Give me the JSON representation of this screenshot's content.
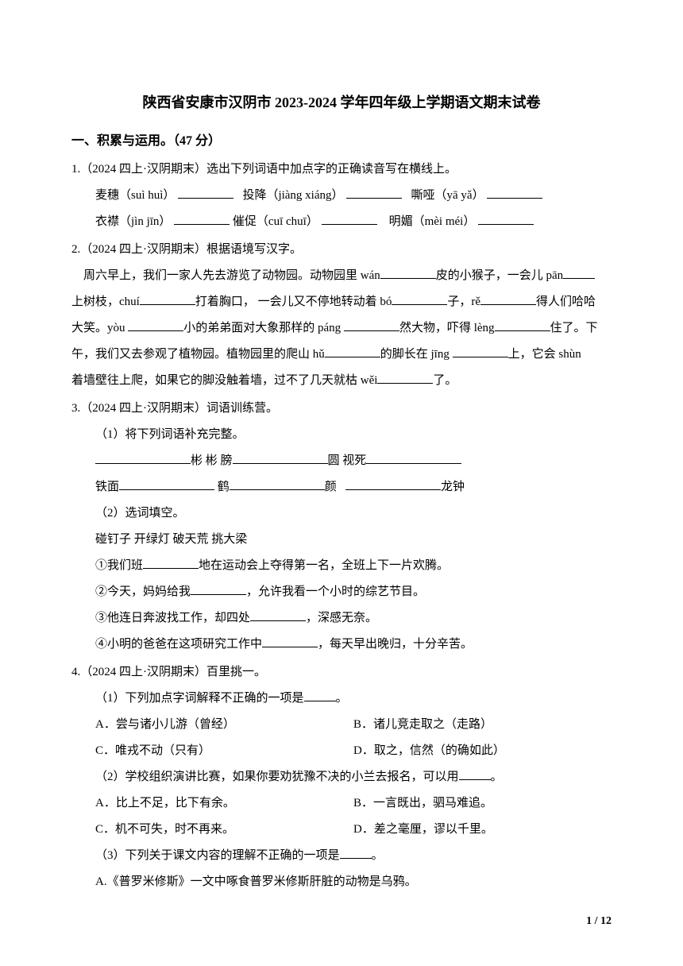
{
  "title": "陕西省安康市汉阴市 2023-2024 学年四年级上学期语文期末试卷",
  "section1": {
    "header": "一、积累与运用。（47 分）"
  },
  "q1": {
    "prefix": "1.（2024 四上·汉阴期末）选出下列词语中加点字的正确读音写在横线上。",
    "line1_a": "麦穗（suì huì）",
    "line1_b": "投降（jiàng xiáng）",
    "line1_c": "嘶哑（yā yǎ）",
    "line2_a": "衣襟（jìn jīn）",
    "line2_b": "催促（cuī chuī）",
    "line2_c": "明媚（mèi méi）"
  },
  "q2": {
    "prefix": "2.（2024 四上·汉阴期末）根据语境写汉字。",
    "t1": "周六早上，我们一家人先去游览了动物园。动物园里 wán",
    "t2": "皮的小猴子，一会儿 pān",
    "t3": "上树枝，chuí",
    "t4": "打着胸口，  一会儿又不停地转动着 bó",
    "t5": "子，rě",
    "t6": "得人们哈哈",
    "t7": "大笑。yòu  ",
    "t8": "小的弟弟面对大象那样的 páng  ",
    "t9": "然大物，吓得 lèng",
    "t10": "住了。下",
    "t11": "午，我们又去参观了植物园。植物园里的爬山 hǔ",
    "t12": "的脚长在 jīng  ",
    "t13": "上，它会 shùn  ",
    "t14": "着墙壁往上爬，如果它的脚没触着墙，过不了几天就枯 wěi",
    "t15": "了。"
  },
  "q3": {
    "prefix": "3.（2024 四上·汉阴期末）词语训练营。",
    "sub1": "（1）将下列词语补充完整。",
    "r1_a": "彬 彬  膀",
    "r1_b": "圆  视死",
    "r2_a": "铁面",
    "r2_b": " 鹤",
    "r2_c": "颜",
    "r2_d": "龙钟",
    "sub2": "（2）选词填空。",
    "words": "碰钉子  开绿灯  破天荒  挑大梁",
    "o1a": "①我们班",
    "o1b": "地在运动会上夺得第一名，全班上下一片欢腾。",
    "o2a": "②今天，妈妈给我",
    "o2b": "，允许我看一个小时的综艺节目。",
    "o3a": "③他连日奔波找工作，却四处",
    "o3b": "，深感无奈。",
    "o4a": "④小明的爸爸在这项研究工作中",
    "o4b": "，每天早出晚归，十分辛苦。"
  },
  "q4": {
    "prefix": "4.（2024 四上·汉阴期末）百里挑一。",
    "sub1": "（1）下列加点字词解释不正确的一项是",
    "sub1_end": "。",
    "s1a": "A．尝与诸小儿游（曾经）",
    "s1b": "B．诸儿竞走取之（走路）",
    "s1c": "C．唯戎不动（只有）",
    "s1d": "D．取之，信然（的确如此）",
    "sub2": "（2）学校组织演讲比赛，如果你要劝犹豫不决的小兰去报名，可以用",
    "sub2_end": "。",
    "s2a": "A．比上不足，比下有余。",
    "s2b": "B．一言既出，驷马难追。",
    "s2c": "C．机不可失，时不再来。",
    "s2d": "D．差之毫厘，谬以千里。",
    "sub3": "（3）下列关于课文内容的理解不正确的一项是",
    "sub3_end": "。",
    "s3a": "A.《普罗米修斯》一文中啄食普罗米修斯肝脏的动物是乌鸦。"
  },
  "pagenum": "1 / 12"
}
